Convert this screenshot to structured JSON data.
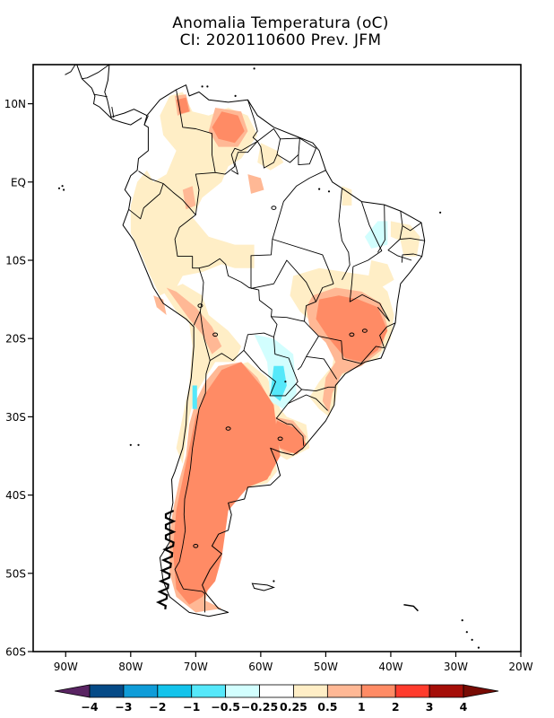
{
  "title": {
    "line1": "Anomalia Temperatura (oC)",
    "line2": "CI: 2020110600 Prev. JFM"
  },
  "map": {
    "region": "South America",
    "lon_range": [
      -95,
      -20
    ],
    "lat_range": [
      -60,
      15
    ],
    "lat_ticks": [
      {
        "value": 10,
        "label": "10N"
      },
      {
        "value": 0,
        "label": "EQ"
      },
      {
        "value": -10,
        "label": "10S"
      },
      {
        "value": -20,
        "label": "20S"
      },
      {
        "value": -30,
        "label": "30S"
      },
      {
        "value": -40,
        "label": "40S"
      },
      {
        "value": -50,
        "label": "50S"
      },
      {
        "value": -60,
        "label": "60S"
      }
    ],
    "lon_ticks": [
      {
        "value": -90,
        "label": "90W"
      },
      {
        "value": -80,
        "label": "80W"
      },
      {
        "value": -70,
        "label": "70W"
      },
      {
        "value": -60,
        "label": "60W"
      },
      {
        "value": -50,
        "label": "50W"
      },
      {
        "value": -40,
        "label": "40W"
      },
      {
        "value": -30,
        "label": "30W"
      },
      {
        "value": -20,
        "label": "20W"
      }
    ],
    "anomaly_regions": [
      {
        "name": "patagonia-core",
        "level": "2 to 3",
        "color": "#ff3c2d",
        "points": [
          [
            -71.5,
            -41
          ],
          [
            -69,
            -40.5
          ],
          [
            -67.5,
            -42
          ],
          [
            -67,
            -45
          ],
          [
            -66.5,
            -48
          ],
          [
            -67.5,
            -51
          ],
          [
            -70,
            -51.5
          ],
          [
            -72,
            -50.5
          ],
          [
            -72.5,
            -46
          ],
          [
            -72,
            -43
          ]
        ]
      },
      {
        "name": "argentina-warm",
        "level": "1 to 2",
        "color": "#ff8b65",
        "points": [
          [
            -66,
            -24
          ],
          [
            -63,
            -23
          ],
          [
            -60,
            -26
          ],
          [
            -58,
            -28.5
          ],
          [
            -57.5,
            -32
          ],
          [
            -57,
            -35
          ],
          [
            -59,
            -38
          ],
          [
            -62,
            -39
          ],
          [
            -63.5,
            -40.5
          ],
          [
            -65,
            -42
          ],
          [
            -65.5,
            -45
          ],
          [
            -66,
            -48
          ],
          [
            -67,
            -51
          ],
          [
            -69,
            -53
          ],
          [
            -71,
            -54
          ],
          [
            -73,
            -52
          ],
          [
            -73.5,
            -47
          ],
          [
            -73,
            -42
          ],
          [
            -72,
            -38
          ],
          [
            -71,
            -34
          ],
          [
            -70,
            -30
          ],
          [
            -68.5,
            -27
          ]
        ]
      },
      {
        "name": "central-brazil-warm",
        "level": "1 to 2",
        "color": "#ff8b65",
        "points": [
          [
            -51,
            -15
          ],
          [
            -48,
            -14.5
          ],
          [
            -45,
            -15
          ],
          [
            -42,
            -16
          ],
          [
            -40.5,
            -19
          ],
          [
            -42,
            -21.5
          ],
          [
            -44.5,
            -23
          ],
          [
            -47,
            -22.5
          ],
          [
            -49.5,
            -20
          ],
          [
            -51.5,
            -17.5
          ]
        ]
      },
      {
        "name": "uruguay-warm",
        "level": "1 to 2",
        "color": "#ff8b65",
        "points": [
          [
            -57.5,
            -30.5
          ],
          [
            -54.5,
            -31.5
          ],
          [
            -53,
            -33.5
          ],
          [
            -54.5,
            -34.8
          ],
          [
            -57,
            -34
          ],
          [
            -58,
            -32
          ]
        ]
      },
      {
        "name": "venezuela-warm",
        "level": "1 to 2",
        "color": "#ff8b65",
        "points": [
          [
            -66,
            9
          ],
          [
            -63.5,
            8.5
          ],
          [
            -62.5,
            6.5
          ],
          [
            -64,
            5
          ],
          [
            -66.5,
            5.5
          ],
          [
            -67.5,
            7
          ]
        ]
      },
      {
        "name": "colombia-warm",
        "level": "1 to 2",
        "color": "#ff8b65",
        "points": [
          [
            -73,
            10.5
          ],
          [
            -71.5,
            10.8
          ],
          [
            -71,
            9
          ],
          [
            -72.5,
            8.7
          ]
        ]
      }
    ],
    "cool_regions": [
      {
        "name": "paraguay-cool",
        "level": "-1 to -0.5",
        "color": "#55e8fa",
        "points": [
          [
            -58,
            -23.5
          ],
          [
            -56.5,
            -23.5
          ],
          [
            -56,
            -26
          ],
          [
            -57,
            -28
          ],
          [
            -58.5,
            -27
          ]
        ]
      },
      {
        "name": "chile-cool",
        "level": "-1 to -0.5",
        "color": "#55e8fa",
        "points": [
          [
            -70.5,
            -26
          ],
          [
            -69.8,
            -26
          ],
          [
            -69.8,
            -29
          ],
          [
            -70.5,
            -29
          ]
        ]
      },
      {
        "name": "paraguay-cool-light",
        "level": "-0.5 to -0.25",
        "color": "#d2fefe",
        "points": [
          [
            -61,
            -19.5
          ],
          [
            -58,
            -20
          ],
          [
            -55,
            -22
          ],
          [
            -54.5,
            -27
          ],
          [
            -56.5,
            -29
          ],
          [
            -58.5,
            -28
          ],
          [
            -59,
            -23
          ]
        ]
      },
      {
        "name": "ne-brazil-cool-light",
        "level": "-0.5 to -0.25",
        "color": "#d2fefe",
        "points": [
          [
            -42,
            -5
          ],
          [
            -40.5,
            -5
          ],
          [
            -40.5,
            -8
          ],
          [
            -43,
            -8.5
          ],
          [
            -44,
            -7
          ]
        ]
      }
    ]
  },
  "colorbar": {
    "labels": [
      "-4",
      "-3",
      "-2",
      "-1",
      "-0.5",
      "-0.25",
      "0.25",
      "0.5",
      "1",
      "2",
      "3",
      "4"
    ],
    "colors": [
      "#5a2463",
      "#054a87",
      "#0f9cd8",
      "#13c3eb",
      "#55e8fa",
      "#d2fefe",
      "#ffffff",
      "#ffeec6",
      "#ffb895",
      "#ff8b65",
      "#ff3c2d",
      "#a50e08",
      "#780b04"
    ]
  }
}
